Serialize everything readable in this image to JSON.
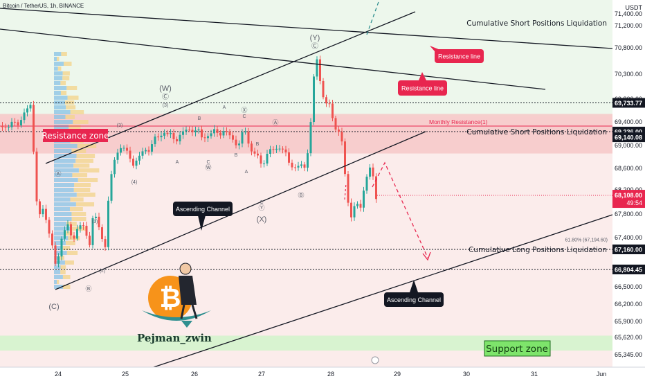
{
  "header": {
    "title": "Bitcoin / TetherUS, 1h, BINANCE",
    "quote": "USDT"
  },
  "colors": {
    "bull": "#26a69a",
    "bear": "#ef5350",
    "red": "#e8264f",
    "green_zone": "#d8f3d0",
    "red_zone": "#f6c8c8",
    "upper_bg": "#edf7ec",
    "lower_bg": "#fbeceb",
    "vp_blue": "#86c1e6",
    "vp_yellow": "#f3d58e"
  },
  "chart_data": {
    "type": "candlestick",
    "symbol": "BTC/USDT",
    "interval": "1h",
    "y_axis_ticks": [
      65345,
      65620,
      65900,
      66200,
      66500,
      67400,
      67800,
      68200,
      68600,
      69000,
      69400,
      69800,
      70300,
      70800,
      71200,
      71400
    ],
    "y_tick_labels": [
      "65,345.00",
      "65,620.00",
      "65,900.00",
      "66,200.00",
      "66,500.00",
      "67,400.00",
      "67,800.00",
      "68,200.00",
      "68,600.00",
      "69,000.00",
      "69,400.00",
      "69,800.00",
      "70,300.00",
      "70,800.00",
      "71,200.00",
      "71,400.00"
    ],
    "x_ticks": [
      "24",
      "25",
      "26",
      "27",
      "28",
      "29",
      "30",
      "31",
      "Jun"
    ],
    "price_tags": [
      {
        "value": 69733.77,
        "label": "69,733.77",
        "style": "dark"
      },
      {
        "value": 69236,
        "label": "69,236.00",
        "style": "dark"
      },
      {
        "value": 69140.08,
        "label": "69,140.08",
        "style": "dark"
      },
      {
        "value": 67160,
        "label": "67,160.00",
        "style": "dark"
      },
      {
        "value": 66804.45,
        "label": "66,804.45",
        "style": "dark"
      }
    ],
    "last_price": {
      "value": 68108,
      "label": "68,108.00",
      "countdown": "49:54"
    },
    "levels": [
      {
        "value": 69733.77,
        "label": ""
      },
      {
        "value": 69236,
        "label": "Cumulative Short Positions Liquidation"
      },
      {
        "value": 67160,
        "label": "Cumulative Long Positions Liquidation"
      },
      {
        "value": 66804.45,
        "label": ""
      }
    ],
    "top_level_label": "Cumulative Short Positions Liquidation",
    "monthly_resistance": {
      "value": 69330,
      "label": "Monthly Resistance(1)"
    },
    "fib_label": "61.80% (67,194.60)",
    "zones": [
      {
        "label": "Resistance zone",
        "from": 68860,
        "to": 69540
      },
      {
        "label": "Support zone",
        "from": 65280,
        "to": 65650
      }
    ],
    "callouts": [
      "Resistance line",
      "Resistance line",
      "Ascending Channel",
      "Ascending Channel"
    ],
    "watermark": "Pejman_zwin",
    "waves": [
      {
        "t": "(Y)",
        "x": 455,
        "y": 58,
        "s": 11
      },
      {
        "t": "Ⓒ",
        "x": 455,
        "y": 70,
        "s": 10
      },
      {
        "t": "(W)",
        "x": 239,
        "y": 131,
        "s": 11
      },
      {
        "t": "Ⓒ",
        "x": 239,
        "y": 143,
        "s": 10
      },
      {
        "t": "(3)",
        "x": 239,
        "y": 154,
        "s": 7
      },
      {
        "t": "(3)",
        "x": 173,
        "y": 183,
        "s": 7
      },
      {
        "t": "(4)",
        "x": 194,
        "y": 265,
        "s": 7
      },
      {
        "t": "(1)",
        "x": 137,
        "y": 322,
        "s": 7
      },
      {
        "t": "(2)",
        "x": 148,
        "y": 393,
        "s": 7
      },
      {
        "t": "Ⓑ",
        "x": 128,
        "y": 420,
        "s": 9
      },
      {
        "t": "(C)",
        "x": 78,
        "y": 446,
        "s": 11
      },
      {
        "t": "Ⓐ",
        "x": 84,
        "y": 254,
        "s": 9
      },
      {
        "t": "A",
        "x": 324,
        "y": 157,
        "s": 7
      },
      {
        "t": "Ⓧ",
        "x": 353,
        "y": 162,
        "s": 9
      },
      {
        "t": "C",
        "x": 353,
        "y": 170,
        "s": 7
      },
      {
        "t": "B",
        "x": 288,
        "y": 173,
        "s": 7
      },
      {
        "t": "A",
        "x": 256,
        "y": 236,
        "s": 7
      },
      {
        "t": "C",
        "x": 301,
        "y": 236,
        "s": 7
      },
      {
        "t": "Ⓦ",
        "x": 301,
        "y": 245,
        "s": 9
      },
      {
        "t": "B",
        "x": 341,
        "y": 226,
        "s": 7
      },
      {
        "t": "Ⓐ",
        "x": 398,
        "y": 180,
        "s": 9
      },
      {
        "t": "B",
        "x": 372,
        "y": 210,
        "s": 7
      },
      {
        "t": "A",
        "x": 356,
        "y": 250,
        "s": 7
      },
      {
        "t": "C",
        "x": 378,
        "y": 294,
        "s": 7
      },
      {
        "t": "Ⓨ",
        "x": 378,
        "y": 303,
        "s": 9
      },
      {
        "t": "(X)",
        "x": 378,
        "y": 320,
        "s": 11
      },
      {
        "t": "Ⓑ",
        "x": 435,
        "y": 285,
        "s": 9
      }
    ]
  }
}
